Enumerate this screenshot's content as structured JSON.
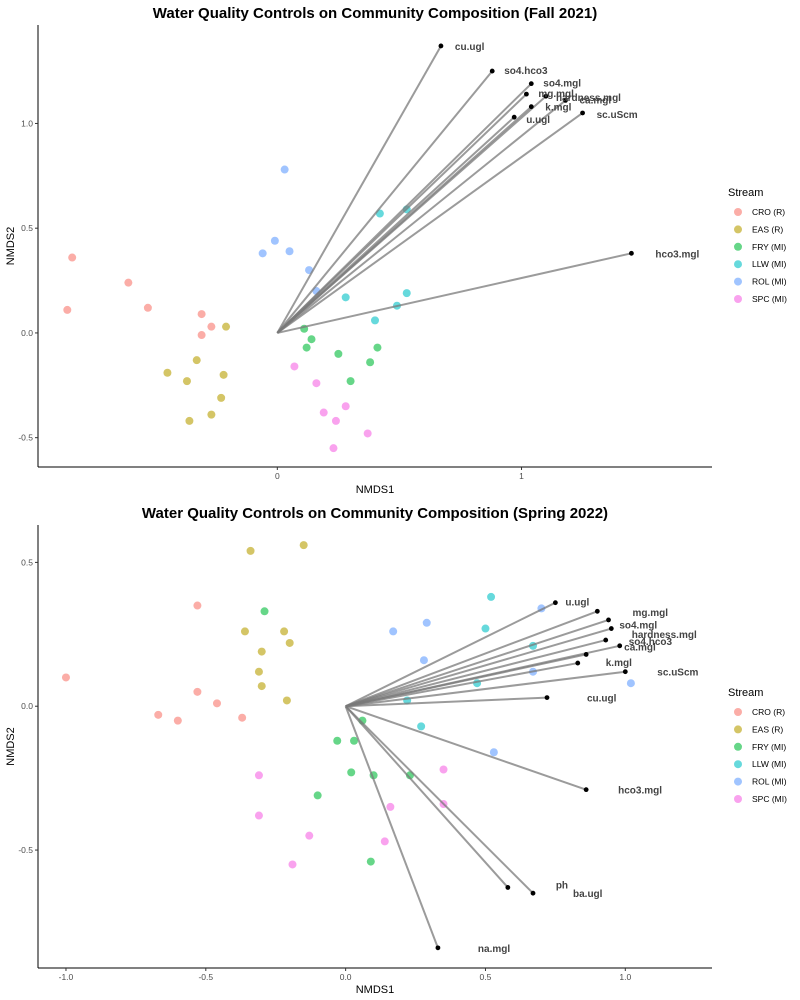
{
  "chart_data": [
    {
      "type": "scatter",
      "title": "Water Quality Controls on Community Composition (Fall 2021)",
      "xlabel": "NMDS1",
      "ylabel": "NMDS2",
      "xlim": [
        -0.98,
        1.78
      ],
      "ylim": [
        -0.64,
        1.47
      ],
      "x_ticks": [
        {
          "v": 0,
          "label": "0"
        },
        {
          "v": 1,
          "label": "1"
        }
      ],
      "y_ticks": [
        {
          "v": -0.5,
          "label": "-0.5"
        },
        {
          "v": 0,
          "label": "0.0"
        },
        {
          "v": 0.5,
          "label": "0.5"
        },
        {
          "v": 1,
          "label": "1.0"
        }
      ],
      "legend_title": "Stream",
      "legend_position": "right",
      "series": [
        {
          "name": "CRO (R)",
          "color": "#F8766D",
          "points": [
            [
              -0.84,
              0.36
            ],
            [
              -0.86,
              0.11
            ],
            [
              -0.61,
              0.24
            ],
            [
              -0.53,
              0.12
            ],
            [
              -0.31,
              0.09
            ],
            [
              -0.27,
              0.03
            ],
            [
              -0.31,
              -0.01
            ]
          ]
        },
        {
          "name": "EAS (R)",
          "color": "#B79F00",
          "points": [
            [
              -0.45,
              -0.19
            ],
            [
              -0.37,
              -0.23
            ],
            [
              -0.33,
              -0.13
            ],
            [
              -0.36,
              -0.42
            ],
            [
              -0.27,
              -0.39
            ],
            [
              -0.23,
              -0.31
            ],
            [
              -0.22,
              -0.2
            ],
            [
              -0.21,
              0.03
            ]
          ]
        },
        {
          "name": "FRY (MI)",
          "color": "#00BA38",
          "points": [
            [
              0.11,
              0.02
            ],
            [
              0.14,
              -0.03
            ],
            [
              0.12,
              -0.07
            ],
            [
              0.25,
              -0.1
            ],
            [
              0.3,
              -0.23
            ],
            [
              0.38,
              -0.14
            ],
            [
              0.41,
              -0.07
            ]
          ]
        },
        {
          "name": "LLW (MI)",
          "color": "#00BFC4",
          "points": [
            [
              0.42,
              0.57
            ],
            [
              0.53,
              0.59
            ],
            [
              0.28,
              0.17
            ],
            [
              0.53,
              0.19
            ],
            [
              0.49,
              0.13
            ],
            [
              0.4,
              0.06
            ]
          ]
        },
        {
          "name": "ROL (MI)",
          "color": "#619CFF",
          "points": [
            [
              0.03,
              0.78
            ],
            [
              -0.01,
              0.44
            ],
            [
              -0.06,
              0.38
            ],
            [
              0.05,
              0.39
            ],
            [
              0.13,
              0.3
            ],
            [
              0.16,
              0.2
            ]
          ]
        },
        {
          "name": "SPC (MI)",
          "color": "#F564E3",
          "points": [
            [
              0.07,
              -0.16
            ],
            [
              0.16,
              -0.24
            ],
            [
              0.19,
              -0.38
            ],
            [
              0.24,
              -0.42
            ],
            [
              0.28,
              -0.35
            ],
            [
              0.37,
              -0.48
            ],
            [
              0.23,
              -0.55
            ]
          ]
        }
      ],
      "vectors": [
        {
          "label": "cu.ugl",
          "x": 0.67,
          "y": 1.37,
          "dx": 14,
          "dy": 4
        },
        {
          "label": "so4.hco3",
          "x": 0.88,
          "y": 1.25,
          "dx": 12,
          "dy": 3
        },
        {
          "label": "so4.mgl",
          "x": 1.04,
          "y": 1.19,
          "dx": 12,
          "dy": 3
        },
        {
          "label": "mg.mgl",
          "x": 1.02,
          "y": 1.14,
          "dx": 12,
          "dy": 3
        },
        {
          "label": "hardness.mgl",
          "x": 1.1,
          "y": 1.13,
          "dx": 10,
          "dy": 5
        },
        {
          "label": "k.mgl",
          "x": 1.04,
          "y": 1.08,
          "dx": 14,
          "dy": 4
        },
        {
          "label": "ca.mgl",
          "x": 1.18,
          "y": 1.11,
          "dx": 14,
          "dy": 3
        },
        {
          "label": "u.ugl",
          "x": 0.97,
          "y": 1.03,
          "dx": 12,
          "dy": 6
        },
        {
          "label": "sc.uScm",
          "x": 1.25,
          "y": 1.05,
          "dx": 14,
          "dy": 5
        },
        {
          "label": "hco3.mgl",
          "x": 1.45,
          "y": 0.38,
          "dx": 24,
          "dy": 4
        }
      ]
    },
    {
      "type": "scatter",
      "title": "Water Quality Controls on Community Composition (Spring 2022)",
      "xlabel": "NMDS1",
      "ylabel": "NMDS2",
      "xlim": [
        -1.1,
        1.31
      ],
      "ylim": [
        -0.91,
        0.63
      ],
      "x_ticks": [
        {
          "v": -1.0,
          "label": "-1.0"
        },
        {
          "v": -0.5,
          "label": "-0.5"
        },
        {
          "v": 0,
          "label": "0.0"
        },
        {
          "v": 0.5,
          "label": "0.5"
        },
        {
          "v": 1.0,
          "label": "1.0"
        }
      ],
      "y_ticks": [
        {
          "v": -0.5,
          "label": "-0.5"
        },
        {
          "v": 0,
          "label": "0.0"
        },
        {
          "v": 0.5,
          "label": "0.5"
        }
      ],
      "legend_title": "Stream",
      "legend_position": "right",
      "series": [
        {
          "name": "CRO (R)",
          "color": "#F8766D",
          "points": [
            [
              -1.0,
              0.1
            ],
            [
              -0.53,
              0.35
            ],
            [
              -0.53,
              0.05
            ],
            [
              -0.46,
              0.01
            ],
            [
              -0.37,
              -0.04
            ],
            [
              -0.67,
              -0.03
            ],
            [
              -0.6,
              -0.05
            ]
          ]
        },
        {
          "name": "EAS (R)",
          "color": "#B79F00",
          "points": [
            [
              -0.34,
              0.54
            ],
            [
              -0.15,
              0.56
            ],
            [
              -0.36,
              0.26
            ],
            [
              -0.22,
              0.26
            ],
            [
              -0.3,
              0.19
            ],
            [
              -0.31,
              0.12
            ],
            [
              -0.3,
              0.07
            ],
            [
              -0.2,
              0.22
            ],
            [
              -0.21,
              0.02
            ]
          ]
        },
        {
          "name": "FRY (MI)",
          "color": "#00BA38",
          "points": [
            [
              -0.29,
              0.33
            ],
            [
              0.06,
              -0.05
            ],
            [
              -0.03,
              -0.12
            ],
            [
              0.03,
              -0.12
            ],
            [
              0.02,
              -0.23
            ],
            [
              0.1,
              -0.24
            ],
            [
              0.23,
              -0.24
            ],
            [
              -0.1,
              -0.31
            ],
            [
              0.09,
              -0.54
            ]
          ]
        },
        {
          "name": "LLW (MI)",
          "color": "#00BFC4",
          "points": [
            [
              0.52,
              0.38
            ],
            [
              0.5,
              0.27
            ],
            [
              0.67,
              0.21
            ],
            [
              0.47,
              0.08
            ],
            [
              0.22,
              0.02
            ],
            [
              0.27,
              -0.07
            ]
          ]
        },
        {
          "name": "ROL (MI)",
          "color": "#619CFF",
          "points": [
            [
              0.7,
              0.34
            ],
            [
              0.29,
              0.29
            ],
            [
              0.17,
              0.26
            ],
            [
              0.28,
              0.16
            ],
            [
              0.67,
              0.12
            ],
            [
              1.02,
              0.08
            ],
            [
              0.53,
              -0.16
            ]
          ]
        },
        {
          "name": "SPC (MI)",
          "color": "#F564E3",
          "points": [
            [
              -0.31,
              -0.24
            ],
            [
              0.35,
              -0.22
            ],
            [
              0.16,
              -0.35
            ],
            [
              0.35,
              -0.34
            ],
            [
              -0.31,
              -0.38
            ],
            [
              -0.13,
              -0.45
            ],
            [
              0.14,
              -0.47
            ],
            [
              -0.19,
              -0.55
            ]
          ]
        }
      ],
      "vectors": [
        {
          "label": "u.ugl",
          "x": 0.75,
          "y": 0.36,
          "dx": 10,
          "dy": 3
        },
        {
          "label": "u.ugl",
          "x": 0.9,
          "y": 0.33,
          "dx": 2,
          "dy": 3,
          "hide_label": true
        },
        {
          "label": "mg.mgl",
          "x": 0.94,
          "y": 0.3,
          "dx": 24,
          "dy": -4
        },
        {
          "label": "so4.mgl",
          "x": 0.95,
          "y": 0.27,
          "dx": 8,
          "dy": 0
        },
        {
          "label": "hardness.mgl",
          "x": 0.93,
          "y": 0.23,
          "dx": 26,
          "dy": -2
        },
        {
          "label": "so4.hco3",
          "x": 0.98,
          "y": 0.21,
          "dx": 9,
          "dy": -1
        },
        {
          "label": "ca.mgl",
          "x": 0.86,
          "y": 0.18,
          "dx": 38,
          "dy": -4
        },
        {
          "label": "k.mgl",
          "x": 0.83,
          "y": 0.15,
          "dx": 28,
          "dy": 3
        },
        {
          "label": "sc.uScm",
          "x": 1.0,
          "y": 0.12,
          "dx": 32,
          "dy": 4
        },
        {
          "label": "cu.ugl",
          "x": 0.72,
          "y": 0.03,
          "dx": 40,
          "dy": 4
        },
        {
          "label": "hco3.mgl",
          "x": 0.86,
          "y": -0.29,
          "dx": 32,
          "dy": 4
        },
        {
          "label": "ph",
          "x": 0.58,
          "y": -0.63,
          "dx": 48,
          "dy": 1
        },
        {
          "label": "ba.ugl",
          "x": 0.67,
          "y": -0.65,
          "dx": 40,
          "dy": 4
        },
        {
          "label": "na.mgl",
          "x": 0.33,
          "y": -0.84,
          "dx": 40,
          "dy": 4
        }
      ]
    }
  ]
}
